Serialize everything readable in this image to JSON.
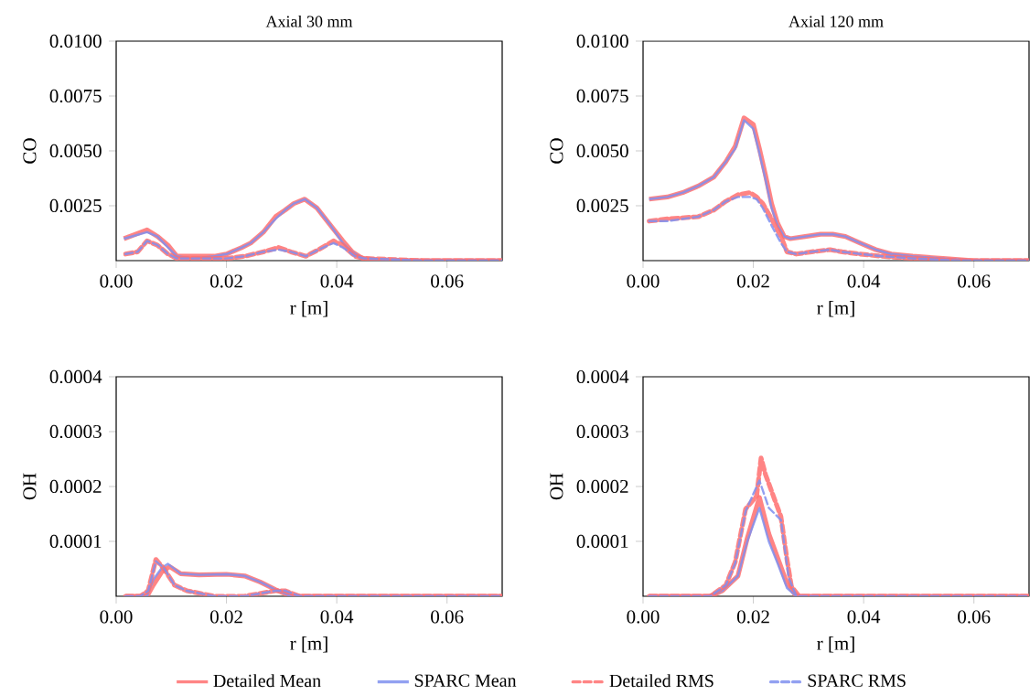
{
  "chart_data": [
    {
      "type": "line",
      "title": "Axial 30 mm",
      "xlabel": "r [m]",
      "ylabel": "CO",
      "xlim": [
        0,
        0.07
      ],
      "ylim": [
        0,
        0.01
      ],
      "xticks": [
        {
          "value": 0,
          "label": "0.00"
        },
        {
          "value": 0.02,
          "label": "0.02"
        },
        {
          "value": 0.04,
          "label": "0.04"
        },
        {
          "value": 0.06,
          "label": "0.06"
        }
      ],
      "yticks": [
        {
          "value": 0.0025,
          "label": "0.0025"
        },
        {
          "value": 0.005,
          "label": "0.0050"
        },
        {
          "value": 0.0075,
          "label": "0.0075"
        },
        {
          "value": 0.01,
          "label": "0.0100"
        }
      ],
      "series": [
        {
          "color": "#ff6f6f",
          "line_style": "solid",
          "x": [
            0.0014,
            0.0056,
            0.0075,
            0.0094,
            0.011,
            0.0139,
            0.0178,
            0.02,
            0.0228,
            0.0244,
            0.0267,
            0.0289,
            0.0306,
            0.0322,
            0.0342,
            0.0364,
            0.0389,
            0.0411,
            0.0428,
            0.0447,
            0.0483,
            0.0567,
            0.07
          ],
          "values": [
            0.001,
            0.0014,
            0.0011,
            0.0007,
            0.0002,
            0.0002,
            0.0002,
            0.0003,
            0.0006,
            0.0008,
            0.0013,
            0.002,
            0.0023,
            0.0026,
            0.0028,
            0.0024,
            0.0016,
            0.0009,
            0.0004,
            0.0001,
            0,
            0,
            0
          ]
        },
        {
          "color": "#7f8fef",
          "line_style": "solid",
          "x": [
            0.0014,
            0.0056,
            0.0075,
            0.0094,
            0.011,
            0.0139,
            0.0178,
            0.02,
            0.0228,
            0.0244,
            0.0267,
            0.0289,
            0.0306,
            0.0322,
            0.0342,
            0.0364,
            0.0389,
            0.0411,
            0.0428,
            0.0447,
            0.0483,
            0.0567,
            0.07
          ],
          "values": [
            0.001,
            0.0013,
            0.0011,
            0.0006,
            0.0002,
            0.0001,
            0.0002,
            0.0003,
            0.0006,
            0.0008,
            0.0013,
            0.0019,
            0.0023,
            0.0026,
            0.0028,
            0.0024,
            0.0016,
            0.0008,
            0.0004,
            0.0001,
            0,
            0,
            0
          ]
        },
        {
          "color": "#ff6f6f",
          "line_style": "dashed",
          "x": [
            0.0017,
            0.0039,
            0.0056,
            0.0075,
            0.0094,
            0.011,
            0.015,
            0.02,
            0.0233,
            0.0267,
            0.0294,
            0.0317,
            0.0344,
            0.0367,
            0.0394,
            0.0411,
            0.0433,
            0.045,
            0.0556,
            0.07
          ],
          "values": [
            0.0003,
            0.0004,
            0.0009,
            0.0007,
            0.0003,
            0.0001,
            0.0001,
            0.0001,
            0.0002,
            0.0004,
            0.0006,
            0.0004,
            0.0002,
            0.0005,
            0.0009,
            0.0007,
            0.0002,
            0.0001,
            0,
            0
          ]
        },
        {
          "color": "#7f8fef",
          "line_style": "dashed",
          "x": [
            0.0017,
            0.0039,
            0.0056,
            0.0075,
            0.0094,
            0.011,
            0.015,
            0.02,
            0.0233,
            0.0267,
            0.0294,
            0.0317,
            0.0344,
            0.0367,
            0.0394,
            0.0411,
            0.0433,
            0.045,
            0.0556,
            0.07
          ],
          "values": [
            0.0003,
            0.0004,
            0.0009,
            0.0007,
            0.0003,
            0.0001,
            0.0001,
            0.0001,
            0.0002,
            0.0004,
            0.0005,
            0.0004,
            0.0002,
            0.0005,
            0.0008,
            0.0006,
            0.0002,
            0.0001,
            0,
            0
          ]
        }
      ]
    },
    {
      "type": "line",
      "title": "Axial 120 mm",
      "xlabel": "r [m]",
      "ylabel": "CO",
      "xlim": [
        0,
        0.07
      ],
      "ylim": [
        0,
        0.01
      ],
      "xticks": [
        {
          "value": 0,
          "label": "0.00"
        },
        {
          "value": 0.02,
          "label": "0.02"
        },
        {
          "value": 0.04,
          "label": "0.04"
        },
        {
          "value": 0.06,
          "label": "0.06"
        }
      ],
      "yticks": [
        {
          "value": 0.0025,
          "label": "0.0025"
        },
        {
          "value": 0.005,
          "label": "0.0050"
        },
        {
          "value": 0.0075,
          "label": "0.0075"
        },
        {
          "value": 0.01,
          "label": "0.0100"
        }
      ],
      "series": [
        {
          "color": "#ff6f6f",
          "line_style": "solid",
          "x": [
            0.0011,
            0.0044,
            0.0072,
            0.01,
            0.0128,
            0.015,
            0.0167,
            0.0183,
            0.02,
            0.0211,
            0.0222,
            0.0233,
            0.0244,
            0.0256,
            0.0267,
            0.0294,
            0.0322,
            0.0344,
            0.0367,
            0.0394,
            0.0422,
            0.045,
            0.0489,
            0.0544,
            0.06,
            0.07
          ],
          "values": [
            0.0028,
            0.0029,
            0.0031,
            0.0034,
            0.0038,
            0.0045,
            0.0052,
            0.0065,
            0.0062,
            0.0051,
            0.0039,
            0.0026,
            0.0017,
            0.0011,
            0.001,
            0.0011,
            0.0012,
            0.0012,
            0.0011,
            0.0008,
            0.0005,
            0.0003,
            0.0002,
            0.0001,
            0,
            0
          ]
        },
        {
          "color": "#7f8fef",
          "line_style": "solid",
          "x": [
            0.0011,
            0.0044,
            0.0072,
            0.01,
            0.0128,
            0.015,
            0.0167,
            0.0183,
            0.02,
            0.0211,
            0.0222,
            0.0233,
            0.0244,
            0.0256,
            0.0267,
            0.0294,
            0.0322,
            0.0344,
            0.0367,
            0.0394,
            0.0422,
            0.045,
            0.0489,
            0.0544,
            0.06,
            0.07
          ],
          "values": [
            0.0028,
            0.0029,
            0.0031,
            0.0034,
            0.0038,
            0.0045,
            0.0051,
            0.0064,
            0.006,
            0.0049,
            0.0037,
            0.0024,
            0.0016,
            0.0011,
            0.001,
            0.0011,
            0.0012,
            0.0012,
            0.0011,
            0.0008,
            0.0005,
            0.0003,
            0.0002,
            0.0001,
            0,
            0
          ]
        },
        {
          "color": "#ff6f6f",
          "line_style": "dashed",
          "x": [
            0.0011,
            0.0044,
            0.01,
            0.0128,
            0.015,
            0.0172,
            0.0194,
            0.0206,
            0.0217,
            0.0233,
            0.025,
            0.0261,
            0.0278,
            0.0306,
            0.0339,
            0.0361,
            0.0394,
            0.0433,
            0.0489,
            0.0572,
            0.07
          ],
          "values": [
            0.0018,
            0.0019,
            0.002,
            0.0023,
            0.0027,
            0.003,
            0.0031,
            0.0029,
            0.0026,
            0.0019,
            0.0011,
            0.0004,
            0.0003,
            0.0004,
            0.0005,
            0.0004,
            0.0003,
            0.0002,
            0.0001,
            0,
            0
          ]
        },
        {
          "color": "#7f8fef",
          "line_style": "dashed",
          "x": [
            0.0011,
            0.0044,
            0.01,
            0.0128,
            0.015,
            0.0172,
            0.0194,
            0.0206,
            0.0217,
            0.0233,
            0.025,
            0.0261,
            0.0278,
            0.0306,
            0.0339,
            0.0361,
            0.0394,
            0.0433,
            0.0489,
            0.0572,
            0.07
          ],
          "values": [
            0.0018,
            0.0018,
            0.002,
            0.0023,
            0.0027,
            0.0029,
            0.0029,
            0.0028,
            0.0024,
            0.0016,
            0.0008,
            0.0004,
            0.0003,
            0.0004,
            0.0005,
            0.0004,
            0.0003,
            0.0002,
            0.0001,
            0,
            0
          ]
        }
      ]
    },
    {
      "type": "line",
      "xlabel": "r [m]",
      "ylabel": "OH",
      "xlim": [
        0,
        0.07
      ],
      "ylim": [
        0,
        0.0004
      ],
      "xticks": [
        {
          "value": 0,
          "label": "0.00"
        },
        {
          "value": 0.02,
          "label": "0.02"
        },
        {
          "value": 0.04,
          "label": "0.04"
        },
        {
          "value": 0.06,
          "label": "0.06"
        }
      ],
      "yticks": [
        {
          "value": 0.0001,
          "label": "0.0001"
        },
        {
          "value": 0.0002,
          "label": "0.0002"
        },
        {
          "value": 0.0003,
          "label": "0.0003"
        },
        {
          "value": 0.0004,
          "label": "0.0004"
        }
      ],
      "series": [
        {
          "color": "#ff6f6f",
          "line_style": "solid",
          "x": [
            0.0017,
            0.0056,
            0.0067,
            0.0083,
            0.0097,
            0.0117,
            0.015,
            0.02,
            0.0233,
            0.0261,
            0.0289,
            0.0317,
            0.0356,
            0.04,
            0.07
          ],
          "values": [
            0,
            0,
            2e-05,
            4.5e-05,
            5.4e-05,
            4.1e-05,
            3.9e-05,
            4e-05,
            3.7e-05,
            2.6e-05,
            1.2e-05,
            0,
            0,
            0,
            0
          ]
        },
        {
          "color": "#7f8fef",
          "line_style": "solid",
          "x": [
            0.0017,
            0.0056,
            0.0067,
            0.0083,
            0.0094,
            0.0117,
            0.015,
            0.02,
            0.0233,
            0.0261,
            0.0289,
            0.0317,
            0.0356,
            0.04,
            0.07
          ],
          "values": [
            0,
            0,
            3e-05,
            5.2e-05,
            5.9e-05,
            4.1e-05,
            3.9e-05,
            4e-05,
            3.7e-05,
            2.6e-05,
            1.2e-05,
            0,
            0,
            0,
            0
          ]
        },
        {
          "color": "#ff6f6f",
          "line_style": "dashed",
          "x": [
            0.0017,
            0.0044,
            0.0058,
            0.0072,
            0.0086,
            0.0106,
            0.0128,
            0.0178,
            0.0233,
            0.0289,
            0.0306,
            0.0333,
            0.0372,
            0.07
          ],
          "values": [
            0,
            0,
            1e-05,
            6.7e-05,
            5.1e-05,
            2e-05,
            1e-05,
            0,
            0,
            1e-05,
            1e-05,
            0,
            0,
            0
          ]
        },
        {
          "color": "#7f8fef",
          "line_style": "dashed",
          "x": [
            0.0017,
            0.0044,
            0.0058,
            0.0072,
            0.0086,
            0.0106,
            0.0128,
            0.0178,
            0.0233,
            0.0289,
            0.0306,
            0.0333,
            0.0372,
            0.07
          ],
          "values": [
            0,
            0,
            1e-05,
            6.4e-05,
            5.2e-05,
            2e-05,
            1e-05,
            0,
            0,
            1e-05,
            1e-05,
            0,
            0,
            0
          ]
        }
      ]
    },
    {
      "type": "line",
      "xlabel": "r [m]",
      "ylabel": "OH",
      "xlim": [
        0,
        0.07
      ],
      "ylim": [
        0,
        0.0004
      ],
      "xticks": [
        {
          "value": 0,
          "label": "0.00"
        },
        {
          "value": 0.02,
          "label": "0.02"
        },
        {
          "value": 0.04,
          "label": "0.04"
        },
        {
          "value": 0.06,
          "label": "0.06"
        }
      ],
      "yticks": [
        {
          "value": 0.0001,
          "label": "0.0001"
        },
        {
          "value": 0.0002,
          "label": "0.0002"
        },
        {
          "value": 0.0003,
          "label": "0.0003"
        },
        {
          "value": 0.0004,
          "label": "0.0004"
        }
      ],
      "legend": "bottom",
      "series": [
        {
          "name": "Detailed Mean",
          "color": "#ff6f6f",
          "line_style": "solid",
          "x": [
            0.0011,
            0.0122,
            0.0144,
            0.0172,
            0.0189,
            0.0211,
            0.0228,
            0.0244,
            0.0261,
            0.0278,
            0.0294,
            0.07
          ],
          "values": [
            0,
            0,
            1e-05,
            3.7e-05,
            0.000106,
            0.00018,
            0.000114,
            7e-05,
            2.3e-05,
            0,
            0,
            0
          ]
        },
        {
          "name": "SPARC Mean",
          "color": "#7f8fef",
          "line_style": "solid",
          "x": [
            0.0011,
            0.0122,
            0.0144,
            0.0172,
            0.0189,
            0.0211,
            0.0228,
            0.0244,
            0.0261,
            0.0278,
            0.0294,
            0.07
          ],
          "values": [
            0,
            0,
            1e-05,
            3.7e-05,
            0.0001,
            0.000161,
            0.0001,
            6e-05,
            1.5e-05,
            0,
            0,
            0
          ]
        },
        {
          "name": "Detailed RMS",
          "color": "#ff6f6f",
          "line_style": "dashed",
          "x": [
            0.0011,
            0.0122,
            0.015,
            0.0167,
            0.0186,
            0.0206,
            0.0214,
            0.0222,
            0.0239,
            0.025,
            0.0261,
            0.0269,
            0.0283,
            0.07
          ],
          "values": [
            0,
            0,
            2e-05,
            6.2e-05,
            0.000159,
            0.000183,
            0.000252,
            0.000222,
            0.000175,
            0.000145,
            6.7e-05,
            1.8e-05,
            0,
            0
          ]
        },
        {
          "name": "SPARC RMS",
          "color": "#7f8fef",
          "line_style": "dashed",
          "x": [
            0.0011,
            0.0122,
            0.015,
            0.0167,
            0.0186,
            0.0211,
            0.0228,
            0.025,
            0.0264,
            0.0278,
            0.07
          ],
          "values": [
            0,
            0,
            2e-05,
            6e-05,
            0.000155,
            0.000211,
            0.000161,
            0.000139,
            3.4e-05,
            0,
            0
          ]
        }
      ]
    }
  ]
}
